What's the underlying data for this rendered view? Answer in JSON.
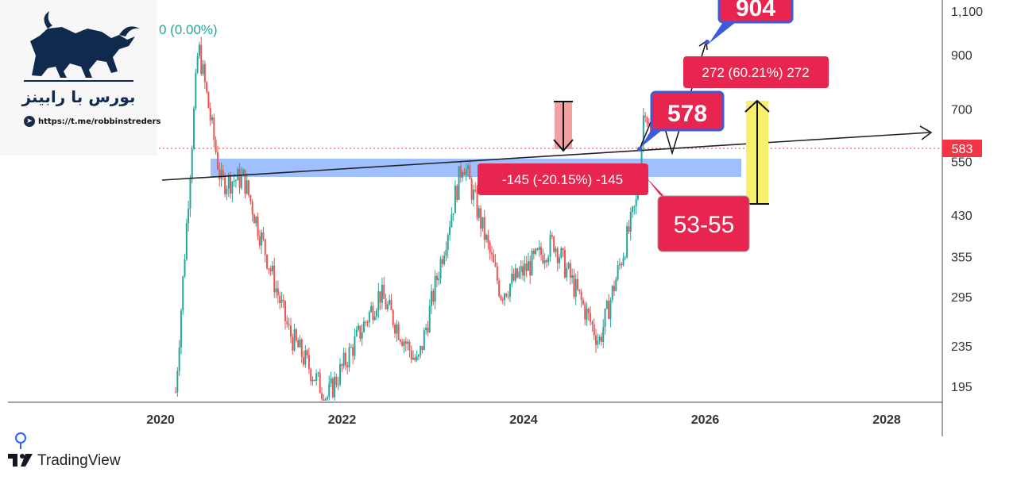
{
  "header": {
    "change_label": "0 (0.00%)"
  },
  "logo": {
    "title": "بورس با رابینز",
    "link": "https://t.me/robbinstreders"
  },
  "watermark": {
    "brand": "TradingView"
  },
  "price_label": {
    "value": "583",
    "color": "#f23645"
  },
  "annotations": {
    "target_box": "578",
    "zone_box": "53-55",
    "measure_up": "272 (60.21%) 272",
    "measure_down": "-145 (-20.15%) -145",
    "top_box_partial": "904"
  },
  "colors": {
    "up": "#26a69a",
    "down": "#ef5350",
    "zone": "#8fb4ff",
    "label": "#e8254f",
    "outline": "#3b5bdb",
    "arrow_yellow": "#f7f06a"
  },
  "chart_data": {
    "type": "candlestick",
    "scale": "log",
    "y_ticks": [
      195,
      235,
      295,
      355,
      430,
      550,
      700,
      900,
      1100
    ],
    "y_tick_labels": [
      "195",
      "235",
      "295",
      "355",
      "430",
      "550",
      "700",
      "900",
      "1,100"
    ],
    "x_ticks": [
      "2020",
      "2022",
      "2024",
      "2026",
      "2028"
    ],
    "current_price": 583,
    "support_zone": [
      510,
      560
    ],
    "trendline": {
      "from": [
        "2019-09",
        505
      ],
      "to": [
        "2028-06",
        620
      ]
    },
    "key_levels": {
      "high_2020": 940,
      "low_2021": 185,
      "high_2023": 555,
      "low_2024": 240,
      "high_2025": 730
    },
    "series": [
      {
        "x": "2020-03",
        "close": 190
      },
      {
        "x": "2020-06",
        "close": 940
      },
      {
        "x": "2020-09",
        "close": 500
      },
      {
        "x": "2020-12",
        "close": 510
      },
      {
        "x": "2021-06",
        "close": 250
      },
      {
        "x": "2021-11",
        "close": 185
      },
      {
        "x": "2022-06",
        "close": 300
      },
      {
        "x": "2022-11",
        "close": 215
      },
      {
        "x": "2023-05",
        "close": 555
      },
      {
        "x": "2023-10",
        "close": 300
      },
      {
        "x": "2024-05",
        "close": 380
      },
      {
        "x": "2024-11",
        "close": 240
      },
      {
        "x": "2025-04",
        "close": 460
      },
      {
        "x": "2025-05",
        "close": 730
      },
      {
        "x": "2025-06",
        "close": 583
      }
    ]
  }
}
